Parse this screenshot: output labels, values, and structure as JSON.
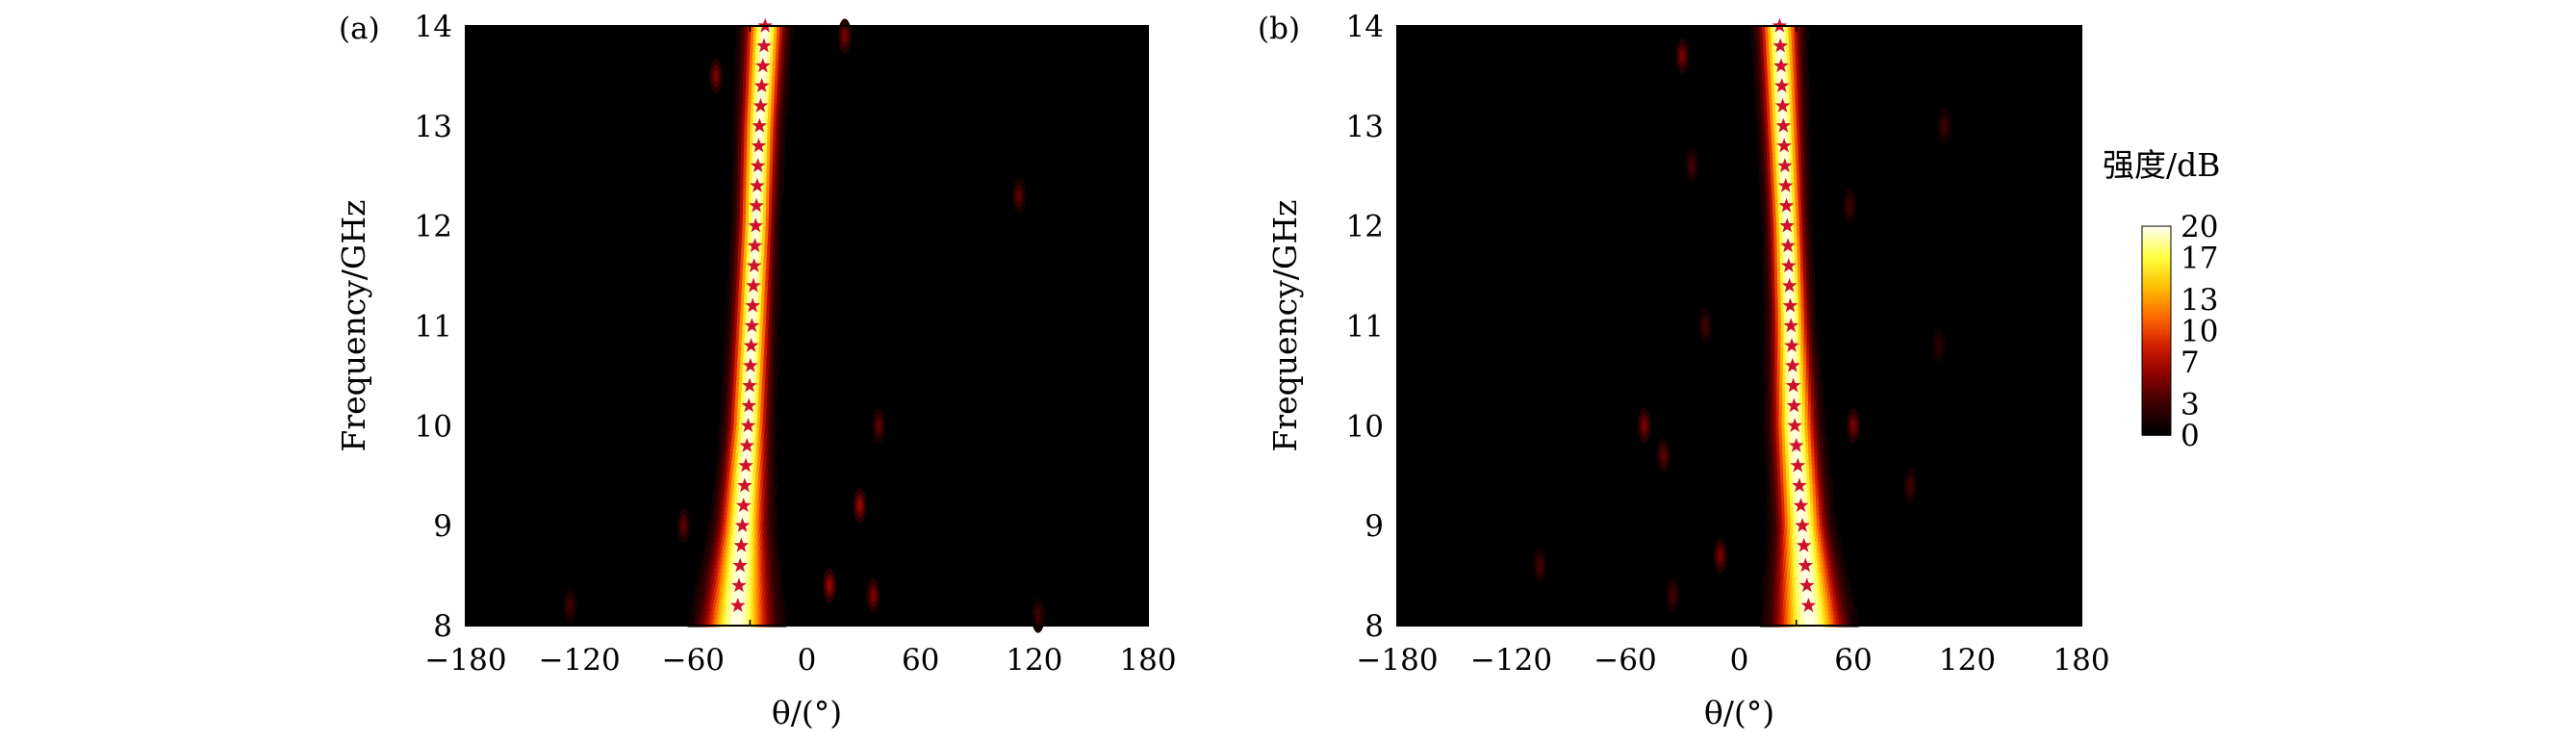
{
  "chart_data": [
    {
      "type": "heatmap",
      "panel_label": "(a)",
      "xlabel": "θ/(°)",
      "ylabel": "Frequency/GHz",
      "xlim": [
        -180,
        180
      ],
      "ylim": [
        8,
        14
      ],
      "xticks": [
        -180,
        -120,
        -60,
        0,
        60,
        120,
        180
      ],
      "xtick_labels": [
        "−180",
        "−120",
        "−60",
        "0",
        "60",
        "120",
        "180"
      ],
      "yticks": [
        8,
        9,
        10,
        11,
        12,
        13,
        14
      ],
      "ytick_labels": [
        "8",
        "9",
        "10",
        "11",
        "12",
        "13",
        "14"
      ],
      "beam": {
        "frequency": [
          8,
          9,
          10,
          11,
          12,
          13,
          14
        ],
        "peak_angle": [
          -37,
          -34,
          -31,
          -29,
          -27,
          -25,
          -22
        ],
        "width_deg": [
          32,
          22,
          18,
          17,
          16,
          17,
          18
        ],
        "peak_intensity_db": 20
      },
      "spots": [
        {
          "theta": 12,
          "freq": 8.4,
          "value": 6
        },
        {
          "theta": 35,
          "freq": 8.3,
          "value": 5
        },
        {
          "theta": 28,
          "freq": 9.2,
          "value": 6
        },
        {
          "theta": 38,
          "freq": 10.0,
          "value": 4
        },
        {
          "theta": -65,
          "freq": 9.0,
          "value": 4
        },
        {
          "theta": -125,
          "freq": 8.2,
          "value": 3
        },
        {
          "theta": 112,
          "freq": 12.3,
          "value": 4
        },
        {
          "theta": 20,
          "freq": 13.9,
          "value": 5
        },
        {
          "theta": -48,
          "freq": 13.5,
          "value": 5
        },
        {
          "theta": 122,
          "freq": 8.1,
          "value": 3
        }
      ],
      "star_markers": {
        "frequency": [
          8.2,
          8.4,
          8.6,
          8.8,
          9.0,
          9.2,
          9.4,
          9.6,
          9.8,
          10.0,
          10.2,
          10.4,
          10.6,
          10.8,
          11.0,
          11.2,
          11.4,
          11.6,
          11.8,
          12.0,
          12.2,
          12.4,
          12.6,
          12.8,
          13.0,
          13.2,
          13.4,
          13.6,
          13.8,
          14.0
        ],
        "theta": [
          -36.4,
          -35.8,
          -35.2,
          -34.6,
          -34.0,
          -33.4,
          -32.8,
          -32.2,
          -31.6,
          -31.0,
          -30.6,
          -30.2,
          -29.8,
          -29.4,
          -29.0,
          -28.6,
          -28.2,
          -27.8,
          -27.4,
          -27.0,
          -26.6,
          -26.2,
          -25.8,
          -25.4,
          -25.0,
          -24.4,
          -23.8,
          -23.2,
          -22.6,
          -22.0
        ],
        "color": "#d0112b"
      }
    },
    {
      "type": "heatmap",
      "panel_label": "(b)",
      "xlabel": "θ/(°)",
      "ylabel": "Frequency/GHz",
      "xlim": [
        -180,
        180
      ],
      "ylim": [
        8,
        14
      ],
      "xticks": [
        -180,
        -120,
        -60,
        0,
        60,
        120,
        180
      ],
      "xtick_labels": [
        "−180",
        "−120",
        "−60",
        "0",
        "60",
        "120",
        "180"
      ],
      "yticks": [
        8,
        9,
        10,
        11,
        12,
        13,
        14
      ],
      "ytick_labels": [
        "8",
        "9",
        "10",
        "11",
        "12",
        "13",
        "14"
      ],
      "beam": {
        "frequency": [
          8,
          9,
          10,
          11,
          12,
          13,
          14
        ],
        "peak_angle": [
          37,
          33,
          29,
          27,
          25,
          23,
          21
        ],
        "width_deg": [
          32,
          22,
          20,
          17,
          16,
          17,
          18
        ],
        "peak_intensity_db": 20
      },
      "spots": [
        {
          "theta": -50,
          "freq": 10.0,
          "value": 5
        },
        {
          "theta": -40,
          "freq": 9.7,
          "value": 4
        },
        {
          "theta": 60,
          "freq": 10.0,
          "value": 5
        },
        {
          "theta": -10,
          "freq": 8.7,
          "value": 5
        },
        {
          "theta": -30,
          "freq": 13.7,
          "value": 5
        },
        {
          "theta": -35,
          "freq": 8.3,
          "value": 3
        },
        {
          "theta": -105,
          "freq": 8.6,
          "value": 3
        },
        {
          "theta": -25,
          "freq": 12.6,
          "value": 3
        },
        {
          "theta": 58,
          "freq": 12.2,
          "value": 3
        },
        {
          "theta": 90,
          "freq": 9.4,
          "value": 3
        },
        {
          "theta": 108,
          "freq": 13.0,
          "value": 3
        },
        {
          "theta": 105,
          "freq": 10.8,
          "value": 2
        },
        {
          "theta": -18,
          "freq": 11.0,
          "value": 3
        }
      ],
      "star_markers": {
        "frequency": [
          8.2,
          8.4,
          8.6,
          8.8,
          9.0,
          9.2,
          9.4,
          9.6,
          9.8,
          10.0,
          10.2,
          10.4,
          10.6,
          10.8,
          11.0,
          11.2,
          11.4,
          11.6,
          11.8,
          12.0,
          12.2,
          12.4,
          12.6,
          12.8,
          13.0,
          13.2,
          13.4,
          13.6,
          13.8,
          14.0
        ],
        "theta": [
          36.4,
          35.6,
          34.8,
          34.0,
          33.2,
          32.4,
          31.6,
          30.8,
          30.0,
          29.2,
          28.8,
          28.4,
          28.0,
          27.6,
          27.2,
          26.8,
          26.4,
          26.0,
          25.6,
          25.2,
          24.8,
          24.4,
          24.0,
          23.6,
          23.2,
          22.8,
          22.4,
          22.0,
          21.6,
          21.2
        ],
        "color": "#d0112b"
      }
    }
  ],
  "colorbar": {
    "title": "强度/dB",
    "range": [
      0,
      20
    ],
    "tick_values": [
      0,
      3,
      7,
      10,
      13,
      17,
      20
    ],
    "tick_labels": [
      "0",
      "3",
      "7",
      "10",
      "13",
      "17",
      "20"
    ],
    "colormap": [
      "#000000",
      "#3a0000",
      "#8a0000",
      "#d21c00",
      "#ff6a00",
      "#ffbe00",
      "#ffff40",
      "#ffffe6"
    ]
  }
}
